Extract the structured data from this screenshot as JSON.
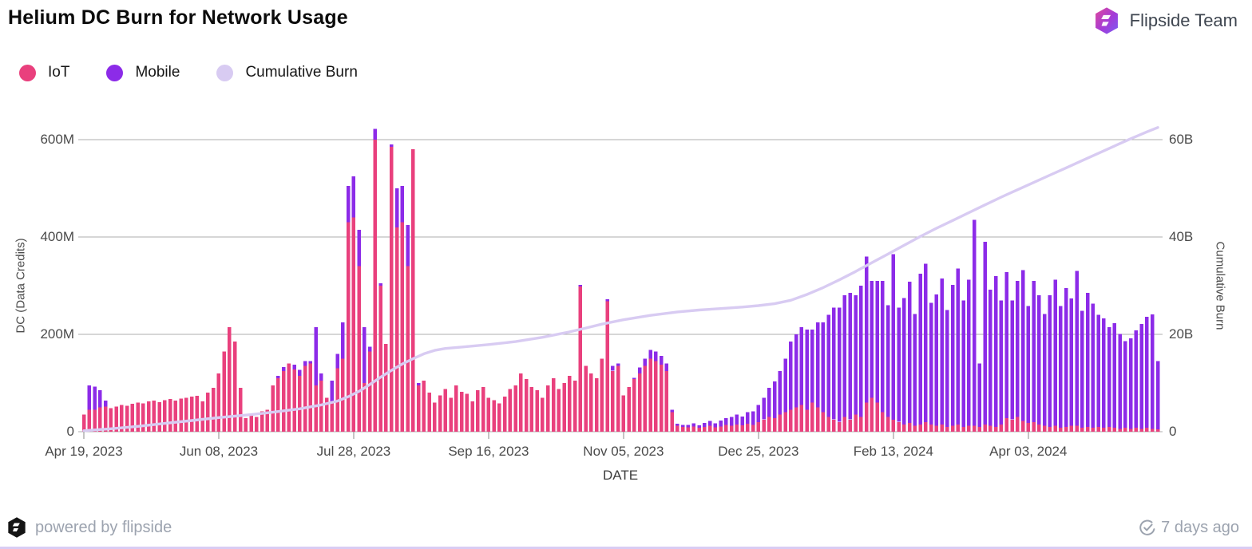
{
  "header": {
    "title": "Helium DC Burn for Network Usage",
    "team_name": "Flipside Team"
  },
  "icons": {
    "header_logo": "flipside-hexagon-logo",
    "footer_logo": "flipside-hexagon-logo-black",
    "updated_icon": "clock-check-icon"
  },
  "colors": {
    "iot": "#E9407D",
    "mobile": "#8C2BE8",
    "cumulative": "#D8CBF2",
    "grid": "#ACACAC",
    "tick": "#8a8a8a",
    "accent_strip": "#D9CCF4"
  },
  "legend": [
    {
      "id": "iot",
      "label": "IoT",
      "color": "#E9407D"
    },
    {
      "id": "mobile",
      "label": "Mobile",
      "color": "#8C2BE8"
    },
    {
      "id": "cumulative",
      "label": "Cumulative Burn",
      "color": "#D8CBF2"
    }
  ],
  "footer": {
    "powered_by": "powered by flipside",
    "updated": "7 days ago"
  },
  "chart_data": {
    "type": "bar",
    "subtype": "stacked-bars-with-line",
    "title": "Helium DC Burn for Network Usage",
    "xlabel": "DATE",
    "ylabel_left": "DC (Data Credits)",
    "ylabel_right": "Cumulative Burn",
    "grid": true,
    "legend_position": "top-left",
    "ylim_left_millions": [
      0,
      600
    ],
    "ylim_right_billions": [
      0,
      60
    ],
    "y_left_ticks": [
      {
        "value": 0,
        "label": "0"
      },
      {
        "value": 200,
        "label": "200M"
      },
      {
        "value": 400,
        "label": "400M"
      },
      {
        "value": 600,
        "label": "600M"
      }
    ],
    "y_right_ticks": [
      {
        "value": 0,
        "label": "0"
      },
      {
        "value": 20,
        "label": "20B"
      },
      {
        "value": 40,
        "label": "40B"
      },
      {
        "value": 60,
        "label": "60B"
      }
    ],
    "x_ticks": [
      {
        "day": 0,
        "label": "Apr 19, 2023"
      },
      {
        "day": 50,
        "label": "Jun 08, 2023"
      },
      {
        "day": 100,
        "label": "Jul 28, 2023"
      },
      {
        "day": 150,
        "label": "Sep 16, 2023"
      },
      {
        "day": 200,
        "label": "Nov 05, 2023"
      },
      {
        "day": 250,
        "label": "Dec 25, 2023"
      },
      {
        "day": 300,
        "label": "Feb 13, 2024"
      },
      {
        "day": 350,
        "label": "Apr 03, 2024"
      }
    ],
    "total_days": 398,
    "bar_day_step": 2,
    "series": [
      {
        "name": "IoT",
        "type": "bar",
        "stack": "dc",
        "axis": "left",
        "unit": "M",
        "color": "#E9407D",
        "values": [
          35,
          45,
          45,
          50,
          52,
          48,
          52,
          55,
          53,
          57,
          60,
          58,
          62,
          64,
          61,
          65,
          67,
          64,
          68,
          70,
          72,
          74,
          62,
          80,
          90,
          120,
          165,
          215,
          185,
          90,
          28,
          35,
          30,
          42,
          45,
          95,
          110,
          125,
          140,
          128,
          115,
          135,
          140,
          95,
          105,
          70,
          60,
          130,
          150,
          430,
          440,
          340,
          100,
          165,
          600,
          300,
          180,
          585,
          420,
          430,
          340,
          580,
          95,
          105,
          80,
          60,
          75,
          88,
          70,
          95,
          82,
          78,
          62,
          85,
          92,
          70,
          65,
          58,
          72,
          88,
          95,
          120,
          108,
          92,
          85,
          70,
          95,
          110,
          88,
          100,
          115,
          105,
          298,
          135,
          120,
          110,
          150,
          268,
          125,
          135,
          75,
          92,
          108,
          120,
          135,
          150,
          145,
          138,
          125,
          40,
          12,
          10,
          9,
          11,
          8,
          10,
          12,
          9,
          11,
          14,
          12,
          15,
          13,
          16,
          14,
          20,
          25,
          30,
          28,
          35,
          40,
          45,
          50,
          55,
          45,
          60,
          50,
          40,
          30,
          25,
          20,
          30,
          25,
          35,
          30,
          60,
          70,
          60,
          40,
          30,
          25,
          20,
          15,
          18,
          12,
          15,
          20,
          15,
          12,
          15,
          10,
          12,
          15,
          10,
          12,
          12,
          10,
          15,
          12,
          10,
          15,
          28,
          25,
          30,
          22,
          18,
          20,
          15,
          12,
          10,
          12,
          8,
          10,
          12,
          12,
          8,
          10,
          8,
          10,
          8,
          10,
          8,
          6,
          8,
          6,
          8,
          6,
          8,
          6,
          5
        ]
      },
      {
        "name": "Mobile",
        "type": "bar",
        "stack": "dc",
        "axis": "left",
        "unit": "M",
        "color": "#8C2BE8",
        "values": [
          0,
          50,
          48,
          35,
          12,
          0,
          0,
          0,
          0,
          0,
          0,
          0,
          0,
          0,
          0,
          0,
          0,
          0,
          0,
          0,
          0,
          0,
          0,
          0,
          0,
          0,
          0,
          0,
          0,
          0,
          0,
          0,
          0,
          0,
          0,
          0,
          5,
          8,
          0,
          10,
          12,
          10,
          5,
          120,
          15,
          0,
          45,
          30,
          75,
          75,
          85,
          75,
          115,
          10,
          22,
          5,
          0,
          5,
          80,
          75,
          85,
          0,
          5,
          0,
          0,
          0,
          0,
          0,
          0,
          0,
          0,
          0,
          0,
          0,
          0,
          0,
          0,
          0,
          0,
          0,
          0,
          0,
          0,
          0,
          0,
          0,
          0,
          0,
          0,
          0,
          0,
          0,
          4,
          0,
          0,
          0,
          0,
          4,
          10,
          5,
          0,
          0,
          3,
          12,
          15,
          18,
          20,
          18,
          15,
          5,
          4,
          4,
          5,
          6,
          5,
          8,
          10,
          8,
          12,
          14,
          18,
          20,
          18,
          24,
          28,
          35,
          45,
          60,
          75,
          90,
          110,
          140,
          150,
          160,
          165,
          150,
          175,
          185,
          210,
          230,
          235,
          250,
          260,
          245,
          270,
          300,
          240,
          250,
          270,
          230,
          340,
          235,
          260,
          290,
          230,
          310,
          325,
          250,
          270,
          300,
          240,
          290,
          320,
          260,
          300,
          423,
          130,
          375,
          280,
          310,
          255,
          300,
          245,
          280,
          310,
          240,
          290,
          265,
          230,
          270,
          300,
          250,
          285,
          262,
          318,
          240,
          275,
          255,
          230,
          225,
          205,
          215,
          195,
          178,
          186,
          200,
          215,
          228,
          235,
          140
        ]
      },
      {
        "name": "Cumulative Burn",
        "type": "line",
        "axis": "right",
        "unit": "B",
        "color": "#D8CBF2",
        "points": [
          [
            0,
            0.2
          ],
          [
            10,
            0.6
          ],
          [
            20,
            1.1
          ],
          [
            30,
            1.7
          ],
          [
            40,
            2.3
          ],
          [
            50,
            2.9
          ],
          [
            56,
            3.2
          ],
          [
            62,
            3.5
          ],
          [
            70,
            4.0
          ],
          [
            80,
            4.7
          ],
          [
            88,
            5.5
          ],
          [
            94,
            6.3
          ],
          [
            98,
            7.2
          ],
          [
            102,
            8.3
          ],
          [
            106,
            9.7
          ],
          [
            110,
            11.2
          ],
          [
            114,
            12.6
          ],
          [
            118,
            13.9
          ],
          [
            122,
            15.0
          ],
          [
            126,
            16.0
          ],
          [
            130,
            16.7
          ],
          [
            134,
            17.1
          ],
          [
            140,
            17.4
          ],
          [
            150,
            17.9
          ],
          [
            160,
            18.5
          ],
          [
            170,
            19.4
          ],
          [
            180,
            20.5
          ],
          [
            186,
            21.3
          ],
          [
            192,
            22.1
          ],
          [
            200,
            23.0
          ],
          [
            210,
            23.9
          ],
          [
            220,
            24.6
          ],
          [
            228,
            25.0
          ],
          [
            236,
            25.3
          ],
          [
            244,
            25.6
          ],
          [
            250,
            25.9
          ],
          [
            256,
            26.3
          ],
          [
            262,
            27.0
          ],
          [
            268,
            28.2
          ],
          [
            274,
            29.6
          ],
          [
            280,
            31.2
          ],
          [
            286,
            32.9
          ],
          [
            292,
            34.7
          ],
          [
            298,
            36.5
          ],
          [
            304,
            38.3
          ],
          [
            310,
            40.1
          ],
          [
            316,
            41.8
          ],
          [
            322,
            43.4
          ],
          [
            328,
            45.0
          ],
          [
            334,
            46.6
          ],
          [
            340,
            48.2
          ],
          [
            346,
            49.7
          ],
          [
            352,
            51.2
          ],
          [
            358,
            52.7
          ],
          [
            364,
            54.2
          ],
          [
            370,
            55.7
          ],
          [
            376,
            57.2
          ],
          [
            382,
            58.7
          ],
          [
            388,
            60.2
          ],
          [
            394,
            61.6
          ],
          [
            398,
            62.5
          ]
        ]
      }
    ]
  }
}
